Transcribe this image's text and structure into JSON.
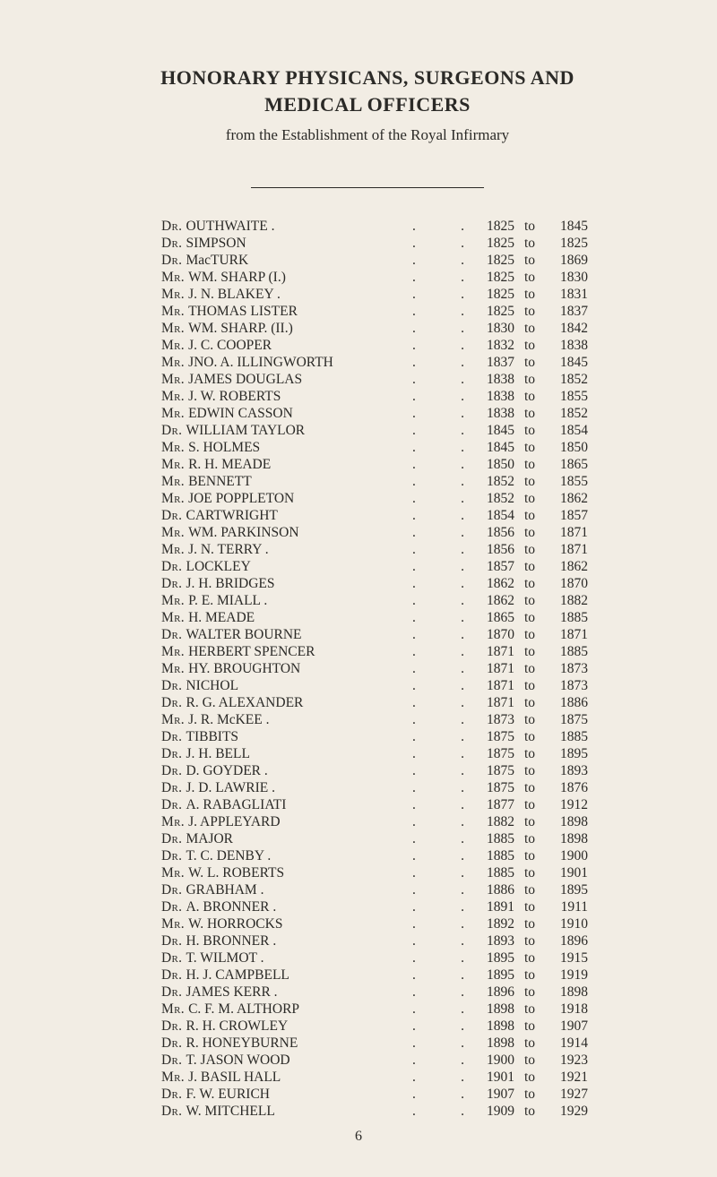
{
  "title_line1": "HONORARY PHYSICANS, SURGEONS AND",
  "title_line2": "MEDICAL OFFICERS",
  "subtitle": "from the Establishment of the Royal Infirmary",
  "to_word": "to",
  "page_number": "6",
  "rows": [
    {
      "prefix": "Dr.",
      "name": "OUTHWAITE .",
      "from": "1825",
      "to": "1845"
    },
    {
      "prefix": "Dr.",
      "name": "SIMPSON",
      "from": "1825",
      "to": "1825"
    },
    {
      "prefix": "Dr.",
      "name": "MacTURK",
      "from": "1825",
      "to": "1869"
    },
    {
      "prefix": "Mr.",
      "name": "WM. SHARP (I.)",
      "from": "1825",
      "to": "1830"
    },
    {
      "prefix": "Mr.",
      "name": "J. N. BLAKEY .",
      "from": "1825",
      "to": "1831"
    },
    {
      "prefix": "Mr.",
      "name": "THOMAS LISTER",
      "from": "1825",
      "to": "1837"
    },
    {
      "prefix": "Mr.",
      "name": "WM. SHARP. (II.)",
      "from": "1830",
      "to": "1842"
    },
    {
      "prefix": "Mr.",
      "name": "J. C. COOPER",
      "from": "1832",
      "to": "1838"
    },
    {
      "prefix": "Mr.",
      "name": "JNO. A. ILLINGWORTH",
      "from": "1837",
      "to": "1845"
    },
    {
      "prefix": "Mr.",
      "name": "JAMES DOUGLAS",
      "from": "1838",
      "to": "1852"
    },
    {
      "prefix": "Mr.",
      "name": "J. W. ROBERTS",
      "from": "1838",
      "to": "1855"
    },
    {
      "prefix": "Mr.",
      "name": "EDWIN CASSON",
      "from": "1838",
      "to": "1852"
    },
    {
      "prefix": "Dr.",
      "name": "WILLIAM TAYLOR",
      "from": "1845",
      "to": "1854"
    },
    {
      "prefix": "Mr.",
      "name": "S. HOLMES",
      "from": "1845",
      "to": "1850"
    },
    {
      "prefix": "Mr.",
      "name": "R. H. MEADE",
      "from": "1850",
      "to": "1865"
    },
    {
      "prefix": "Mr.",
      "name": "BENNETT",
      "from": "1852",
      "to": "1855"
    },
    {
      "prefix": "Mr.",
      "name": "JOE POPPLETON",
      "from": "1852",
      "to": "1862"
    },
    {
      "prefix": "Dr.",
      "name": "CARTWRIGHT",
      "from": "1854",
      "to": "1857"
    },
    {
      "prefix": "Mr.",
      "name": "WM. PARKINSON",
      "from": "1856",
      "to": "1871"
    },
    {
      "prefix": "Mr.",
      "name": "J. N. TERRY .",
      "from": "1856",
      "to": "1871"
    },
    {
      "prefix": "Dr.",
      "name": "LOCKLEY",
      "from": "1857",
      "to": "1862"
    },
    {
      "prefix": "Dr.",
      "name": "J. H. BRIDGES",
      "from": "1862",
      "to": "1870"
    },
    {
      "prefix": "Mr.",
      "name": "P. E. MIALL .",
      "from": "1862",
      "to": "1882"
    },
    {
      "prefix": "Mr.",
      "name": "H. MEADE",
      "from": "1865",
      "to": "1885"
    },
    {
      "prefix": "Dr.",
      "name": "WALTER BOURNE",
      "from": "1870",
      "to": "1871"
    },
    {
      "prefix": "Mr.",
      "name": "HERBERT SPENCER",
      "from": "1871",
      "to": "1885"
    },
    {
      "prefix": "Mr.",
      "name": "HY. BROUGHTON",
      "from": "1871",
      "to": "1873"
    },
    {
      "prefix": "Dr.",
      "name": "NICHOL",
      "from": "1871",
      "to": "1873"
    },
    {
      "prefix": "Dr.",
      "name": "R. G. ALEXANDER",
      "from": "1871",
      "to": "1886"
    },
    {
      "prefix": "Mr.",
      "name": "J. R. McKEE .",
      "from": "1873",
      "to": "1875"
    },
    {
      "prefix": "Dr.",
      "name": "TIBBITS",
      "from": "1875",
      "to": "1885"
    },
    {
      "prefix": "Dr.",
      "name": "J. H. BELL",
      "from": "1875",
      "to": "1895"
    },
    {
      "prefix": "Dr.",
      "name": "D. GOYDER .",
      "from": "1875",
      "to": "1893"
    },
    {
      "prefix": "Dr.",
      "name": "J. D. LAWRIE .",
      "from": "1875",
      "to": "1876"
    },
    {
      "prefix": "Dr.",
      "name": "A. RABAGLIATI",
      "from": "1877",
      "to": "1912"
    },
    {
      "prefix": "Mr.",
      "name": "J. APPLEYARD",
      "from": "1882",
      "to": "1898"
    },
    {
      "prefix": "Dr.",
      "name": "MAJOR",
      "from": "1885",
      "to": "1898"
    },
    {
      "prefix": "Dr.",
      "name": "T. C. DENBY .",
      "from": "1885",
      "to": "1900"
    },
    {
      "prefix": "Mr.",
      "name": "W. L. ROBERTS",
      "from": "1885",
      "to": "1901"
    },
    {
      "prefix": "Dr.",
      "name": "GRABHAM .",
      "from": "1886",
      "to": "1895"
    },
    {
      "prefix": "Dr.",
      "name": "A. BRONNER .",
      "from": "1891",
      "to": "1911"
    },
    {
      "prefix": "Mr.",
      "name": "W. HORROCKS",
      "from": "1892",
      "to": "1910"
    },
    {
      "prefix": "Dr.",
      "name": "H. BRONNER .",
      "from": "1893",
      "to": "1896"
    },
    {
      "prefix": "Dr.",
      "name": "T. WILMOT .",
      "from": "1895",
      "to": "1915"
    },
    {
      "prefix": "Dr.",
      "name": "H. J. CAMPBELL",
      "from": "1895",
      "to": "1919"
    },
    {
      "prefix": "Dr.",
      "name": "JAMES KERR .",
      "from": "1896",
      "to": "1898"
    },
    {
      "prefix": "Mr.",
      "name": "C. F. M. ALTHORP",
      "from": "1898",
      "to": "1918"
    },
    {
      "prefix": "Dr.",
      "name": "R. H. CROWLEY",
      "from": "1898",
      "to": "1907"
    },
    {
      "prefix": "Dr.",
      "name": "R. HONEYBURNE",
      "from": "1898",
      "to": "1914"
    },
    {
      "prefix": "Dr.",
      "name": "T. JASON WOOD",
      "from": "1900",
      "to": "1923"
    },
    {
      "prefix": "Mr.",
      "name": "J. BASIL HALL",
      "from": "1901",
      "to": "1921"
    },
    {
      "prefix": "Dr.",
      "name": "F. W. EURICH",
      "from": "1907",
      "to": "1927"
    },
    {
      "prefix": "Dr.",
      "name": "W. MITCHELL",
      "from": "1909",
      "to": "1929"
    }
  ]
}
